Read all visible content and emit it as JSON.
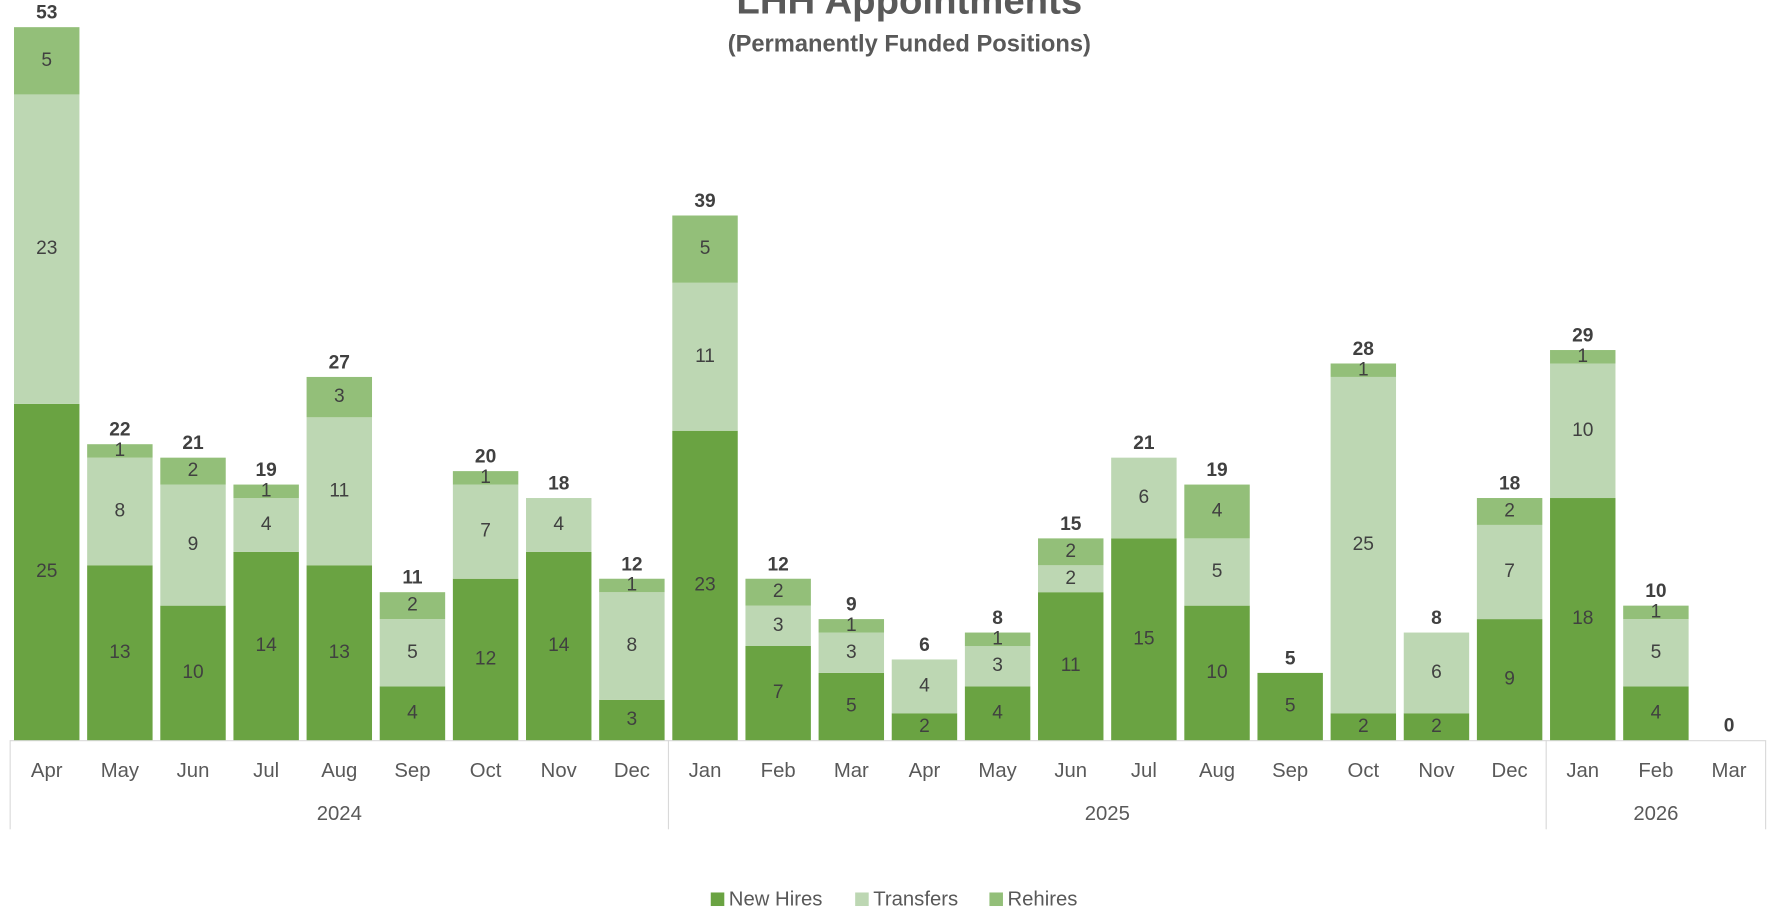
{
  "chart_data": {
    "type": "stacked_bar",
    "title": "LHH Appointments",
    "subtitle": "(Permanently Funded Positions)",
    "categories": [
      "Apr",
      "May",
      "Jun",
      "Jul",
      "Aug",
      "Sep",
      "Oct",
      "Nov",
      "Dec",
      "Jan",
      "Feb",
      "Mar",
      "Apr",
      "May",
      "Jun",
      "Jul",
      "Aug",
      "Sep",
      "Oct",
      "Nov",
      "Dec",
      "Jan",
      "Feb",
      "Mar"
    ],
    "groups": [
      {
        "name": "2024",
        "count": 9
      },
      {
        "name": "2025",
        "count": 12
      },
      {
        "name": "2026",
        "count": 3
      }
    ],
    "series": [
      {
        "name": "New Hires",
        "color": "#6aa342",
        "values": [
          25,
          13,
          10,
          14,
          13,
          4,
          12,
          14,
          3,
          23,
          7,
          5,
          2,
          4,
          11,
          15,
          10,
          5,
          2,
          2,
          9,
          18,
          4,
          0
        ]
      },
      {
        "name": "Transfers",
        "color": "#bdd7b3",
        "values": [
          23,
          8,
          9,
          4,
          11,
          5,
          7,
          4,
          8,
          11,
          3,
          3,
          4,
          3,
          2,
          6,
          5,
          0,
          25,
          6,
          7,
          10,
          5,
          0
        ]
      },
      {
        "name": "Rehires",
        "color": "#93bf79",
        "values": [
          5,
          1,
          2,
          1,
          3,
          2,
          1,
          0,
          1,
          5,
          2,
          1,
          0,
          1,
          2,
          0,
          4,
          0,
          1,
          0,
          2,
          1,
          1,
          0
        ]
      }
    ],
    "totals": [
      53,
      22,
      21,
      19,
      27,
      11,
      20,
      18,
      12,
      39,
      12,
      9,
      6,
      8,
      15,
      21,
      19,
      5,
      28,
      8,
      18,
      29,
      10,
      0
    ],
    "ylim": [
      0,
      53
    ],
    "legend": "bottom"
  }
}
